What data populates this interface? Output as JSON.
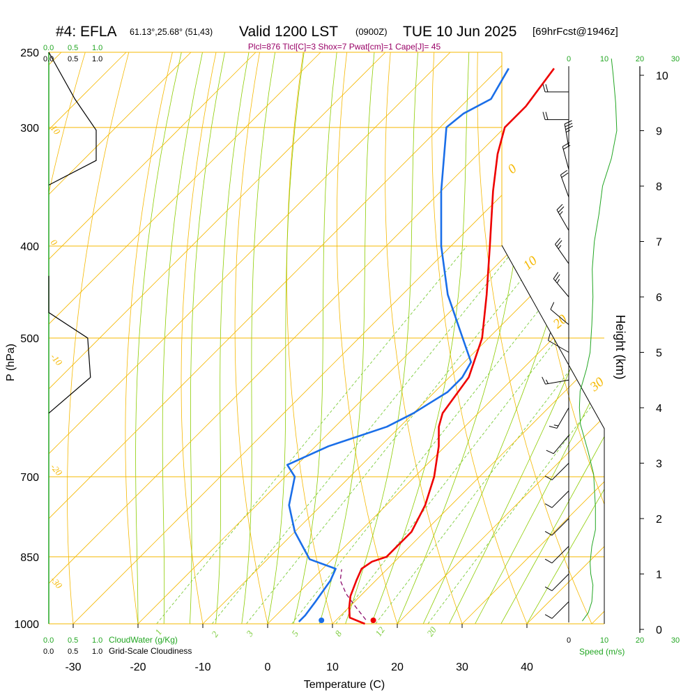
{
  "title": {
    "station": "#4: EFLA",
    "coords": "61.13°,25.68° (51,43)",
    "valid": "Valid 1200 LST",
    "utc": "(0900Z)",
    "date": "TUE 10 Jun 2025",
    "forecast": "[69hrFcst@1946z]",
    "indices": "Plcl=876 Tlcl[C]=3 Shox=7 Pwat[cm]=1 Cape[J]= 45"
  },
  "colors": {
    "isobar": "#f5b800",
    "dry_adiabat": "#f5b800",
    "moist_adiabat": "#8ccc00",
    "mixing_ratio": "#7ccc3c",
    "temperature": "#ee0000",
    "dewpoint": "#1a6ee8",
    "parcel": "#8b0a6b",
    "green_label": "#22a622",
    "index_text": "#990066"
  },
  "chart_data": {
    "type": "skew-t",
    "xlabel": "Temperature (C)",
    "ylabel": "P (hPa)",
    "right_label": "Height (km)",
    "x_ticks": [
      -30,
      -20,
      -10,
      0,
      10,
      20,
      30,
      40
    ],
    "p_ticks": [
      250,
      300,
      400,
      500,
      700,
      850,
      1000
    ],
    "height_ticks": [
      0,
      1,
      2,
      3,
      4,
      5,
      6,
      7,
      8,
      9,
      10
    ],
    "cloud_scale": {
      "cloudwater_label": "CloudWater (g/Kg)",
      "cloudiness_label": "Grid-Scale Cloudiness",
      "ticks": [
        "0.0",
        "0.5",
        "1.0"
      ]
    },
    "speed_scale": {
      "label": "Speed (m/s)",
      "ticks": [
        "0",
        "10",
        "20",
        "30"
      ]
    },
    "dry_adiabat_labels": [
      "0",
      "10",
      "20",
      "30"
    ],
    "theta_e_labels": [
      "10",
      "0",
      "-10",
      "-20",
      "-30"
    ],
    "mixing_ratio_labels": [
      "1",
      "2",
      "3",
      "5",
      "8",
      "12",
      "20"
    ],
    "temperature_profile": [
      {
        "p": 1000,
        "t": 15.0
      },
      {
        "p": 985,
        "t": 11.7
      },
      {
        "p": 960,
        "t": 10.0
      },
      {
        "p": 935,
        "t": 8.5
      },
      {
        "p": 900,
        "t": 7.0
      },
      {
        "p": 875,
        "t": 6.0
      },
      {
        "p": 860,
        "t": 6.5
      },
      {
        "p": 850,
        "t": 8.0
      },
      {
        "p": 800,
        "t": 8.0
      },
      {
        "p": 750,
        "t": 6.0
      },
      {
        "p": 700,
        "t": 3.0
      },
      {
        "p": 650,
        "t": -1.0
      },
      {
        "p": 620,
        "t": -4.0
      },
      {
        "p": 600,
        "t": -5.5
      },
      {
        "p": 550,
        "t": -7.0
      },
      {
        "p": 500,
        "t": -11.0
      },
      {
        "p": 450,
        "t": -17.0
      },
      {
        "p": 400,
        "t": -24.0
      },
      {
        "p": 350,
        "t": -32.0
      },
      {
        "p": 320,
        "t": -37.0
      },
      {
        "p": 300,
        "t": -40.0
      },
      {
        "p": 285,
        "t": -40.0
      },
      {
        "p": 260,
        "t": -41.5
      }
    ],
    "dewpoint_profile": [
      {
        "p": 995,
        "t": 4.5
      },
      {
        "p": 980,
        "t": 4.5
      },
      {
        "p": 950,
        "t": 4.0
      },
      {
        "p": 900,
        "t": 3.0
      },
      {
        "p": 875,
        "t": 2.0
      },
      {
        "p": 855,
        "t": -3.5
      },
      {
        "p": 800,
        "t": -10.0
      },
      {
        "p": 750,
        "t": -15.0
      },
      {
        "p": 700,
        "t": -18.5
      },
      {
        "p": 680,
        "t": -21.5
      },
      {
        "p": 650,
        "t": -18.0
      },
      {
        "p": 620,
        "t": -12.0
      },
      {
        "p": 600,
        "t": -10.0
      },
      {
        "p": 570,
        "t": -8.0
      },
      {
        "p": 550,
        "t": -8.0
      },
      {
        "p": 530,
        "t": -9.0
      },
      {
        "p": 500,
        "t": -14.0
      },
      {
        "p": 450,
        "t": -23.0
      },
      {
        "p": 400,
        "t": -31.5
      },
      {
        "p": 350,
        "t": -40.0
      },
      {
        "p": 300,
        "t": -49.0
      },
      {
        "p": 290,
        "t": -48.5
      },
      {
        "p": 280,
        "t": -46.5
      },
      {
        "p": 260,
        "t": -48.5
      }
    ],
    "parcel_profile": [
      {
        "p": 990,
        "t": 14.5
      },
      {
        "p": 960,
        "t": 11.0
      },
      {
        "p": 930,
        "t": 7.5
      },
      {
        "p": 900,
        "t": 4.5
      },
      {
        "p": 876,
        "t": 3.0
      }
    ],
    "surface_temperature": {
      "p": 1000,
      "t": 16.3
    },
    "surface_dewpoint": {
      "p": 1000,
      "t": 8.3
    },
    "cloudiness_profile": [
      {
        "p": 250,
        "v": 0.0
      },
      {
        "p": 280,
        "v": 0.55
      },
      {
        "p": 302,
        "v": 1.0
      },
      {
        "p": 325,
        "v": 1.0
      },
      {
        "p": 345,
        "v": 0.0
      },
      {
        "p": 430,
        "v": 0.0
      },
      {
        "p": 470,
        "v": 0.0
      },
      {
        "p": 500,
        "v": 0.82
      },
      {
        "p": 550,
        "v": 0.88
      },
      {
        "p": 600,
        "v": 0.0
      }
    ],
    "speed_profile": [
      {
        "h": 0.15,
        "s": 3.8
      },
      {
        "h": 0.3,
        "s": 5.5
      },
      {
        "h": 0.5,
        "s": 6.5
      },
      {
        "h": 0.8,
        "s": 6.8
      },
      {
        "h": 1.0,
        "s": 6.2
      },
      {
        "h": 1.2,
        "s": 6.0
      },
      {
        "h": 1.5,
        "s": 6.5
      },
      {
        "h": 1.8,
        "s": 7.5
      },
      {
        "h": 2.2,
        "s": 7.5
      },
      {
        "h": 2.8,
        "s": 7.0
      },
      {
        "h": 3.2,
        "s": 5.5
      },
      {
        "h": 3.7,
        "s": 3.3
      },
      {
        "h": 4.0,
        "s": 3.0
      },
      {
        "h": 4.3,
        "s": 3.2
      },
      {
        "h": 4.7,
        "s": 5.0
      },
      {
        "h": 5.0,
        "s": 6.0
      },
      {
        "h": 5.5,
        "s": 6.5
      },
      {
        "h": 6.0,
        "s": 6.8
      },
      {
        "h": 6.5,
        "s": 6.6
      },
      {
        "h": 7.0,
        "s": 7.2
      },
      {
        "h": 7.5,
        "s": 8.5
      },
      {
        "h": 8.0,
        "s": 9.5
      },
      {
        "h": 8.5,
        "s": 12.0
      },
      {
        "h": 9.0,
        "s": 13.5
      },
      {
        "h": 9.5,
        "s": 13.2
      },
      {
        "h": 10.0,
        "s": 12.5
      },
      {
        "h": 10.3,
        "s": 12.0
      }
    ],
    "wind_barbs": [
      {
        "h": 0.5,
        "dir": 225,
        "spd": 10
      },
      {
        "h": 1.0,
        "dir": 225,
        "spd": 10
      },
      {
        "h": 1.5,
        "dir": 225,
        "spd": 10
      },
      {
        "h": 2.0,
        "dir": 225,
        "spd": 10
      },
      {
        "h": 2.5,
        "dir": 225,
        "spd": 10
      },
      {
        "h": 3.0,
        "dir": 225,
        "spd": 10
      },
      {
        "h": 3.5,
        "dir": 220,
        "spd": 10
      },
      {
        "h": 4.0,
        "dir": 210,
        "spd": 5
      },
      {
        "h": 4.5,
        "dir": 260,
        "spd": 5
      },
      {
        "h": 5.0,
        "dir": 300,
        "spd": 10
      },
      {
        "h": 5.5,
        "dir": 310,
        "spd": 10
      },
      {
        "h": 6.0,
        "dir": 320,
        "spd": 15
      },
      {
        "h": 6.6,
        "dir": 325,
        "spd": 15
      },
      {
        "h": 7.2,
        "dir": 330,
        "spd": 15
      },
      {
        "h": 7.8,
        "dir": 340,
        "spd": 20
      },
      {
        "h": 8.3,
        "dir": 345,
        "spd": 20
      },
      {
        "h": 8.7,
        "dir": 350,
        "spd": 25
      },
      {
        "h": 9.2,
        "dir": 270,
        "spd": 20
      },
      {
        "h": 9.7,
        "dir": 270,
        "spd": 20
      }
    ],
    "grid": true
  }
}
